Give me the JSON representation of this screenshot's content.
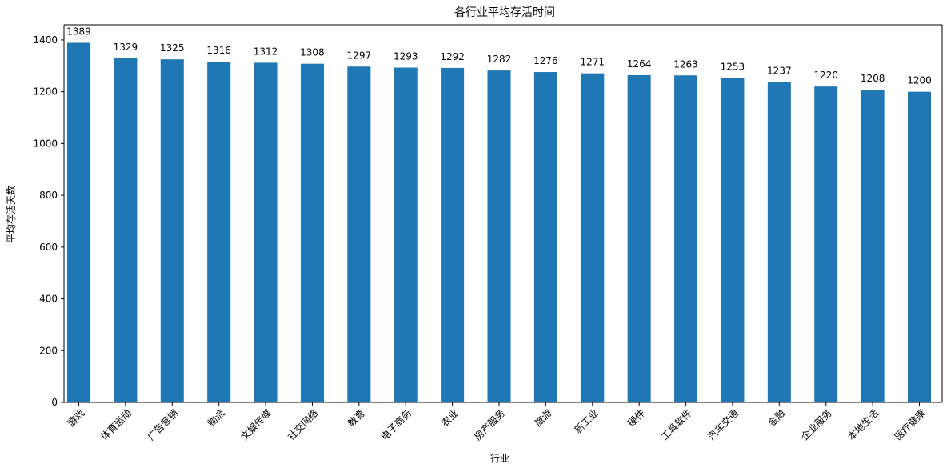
{
  "chart_data": {
    "type": "bar",
    "title": "各行业平均存活时间",
    "xlabel": "行业",
    "ylabel": "平均存活天数",
    "categories": [
      "游戏",
      "体育运动",
      "广告营销",
      "物流",
      "文娱传媒",
      "社交网络",
      "教育",
      "电子商务",
      "农业",
      "房产服务",
      "旅游",
      "新工业",
      "硬件",
      "工具软件",
      "汽车交通",
      "金融",
      "企业服务",
      "本地生活",
      "医疗健康"
    ],
    "values": [
      1389,
      1329,
      1325,
      1316,
      1312,
      1308,
      1297,
      1293,
      1292,
      1282,
      1276,
      1271,
      1264,
      1263,
      1253,
      1237,
      1220,
      1208,
      1200
    ],
    "yticks": [
      0,
      200,
      400,
      600,
      800,
      1000,
      1200,
      1400
    ],
    "ylim": [
      0,
      1458.45
    ],
    "bar_color": "#1f77b4",
    "grid": false,
    "legend": "none"
  }
}
